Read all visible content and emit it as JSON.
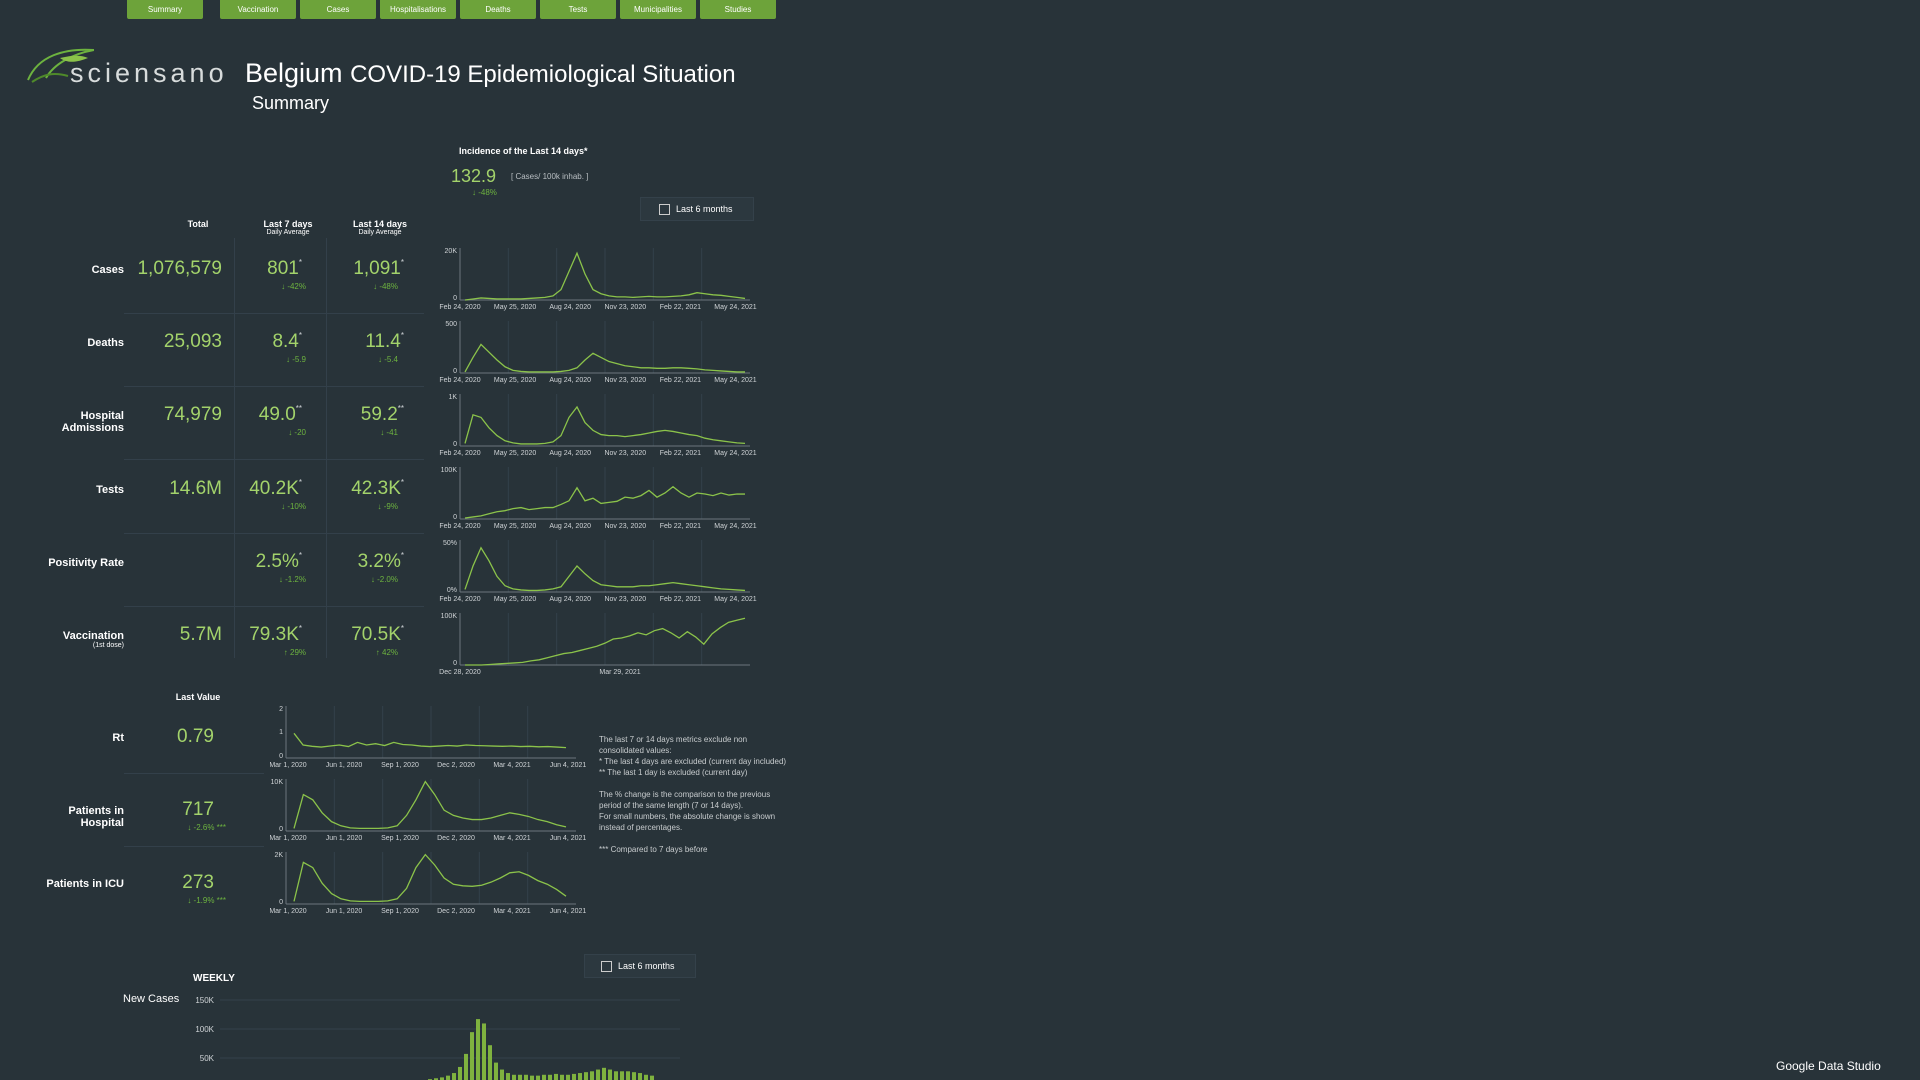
{
  "nav": [
    "Summary",
    "Vaccination",
    "Cases",
    "Hospitalisations",
    "Deaths",
    "Tests",
    "Municipalities",
    "Studies"
  ],
  "logo": {
    "text": "sciensano"
  },
  "header": {
    "title_main": "Belgium",
    "title_rest": "COVID-19 Epidemiological Situation",
    "subtitle": "Summary"
  },
  "incidence": {
    "label": "Incidence of the Last 14 days*",
    "value": "132.9",
    "unit": "[ Cases/ 100k inhab. ]",
    "change": "↓ -48%"
  },
  "toggle_top": {
    "label": "Last 6 months"
  },
  "toggle_bottom": {
    "label": "Last 6 months"
  },
  "columns": {
    "total": "Total",
    "last7": "Last 7 days",
    "last7_sub": "Daily Average",
    "last14": "Last 14 days",
    "last14_sub": "Daily Average"
  },
  "rows": [
    {
      "label": "Cases",
      "sub": "",
      "total": "1,076,579",
      "d7": "801",
      "d7_mark": "*",
      "d7_chg": "↓ -42%",
      "d14": "1,091",
      "d14_mark": "*",
      "d14_chg": "↓ -48%"
    },
    {
      "label": "Deaths",
      "sub": "",
      "total": "25,093",
      "d7": "8.4",
      "d7_mark": "*",
      "d7_chg": "↓ -5.9",
      "d14": "11.4",
      "d14_mark": "*",
      "d14_chg": "↓ -5.4"
    },
    {
      "label": "Hospital Admissions",
      "sub": "",
      "total": "74,979",
      "d7": "49.0",
      "d7_mark": "**",
      "d7_chg": "↓ -20",
      "d14": "59.2",
      "d14_mark": "**",
      "d14_chg": "↓ -41"
    },
    {
      "label": "Tests",
      "sub": "",
      "total": "14.6M",
      "d7": "40.2K",
      "d7_mark": "*",
      "d7_chg": "↓ -10%",
      "d14": "42.3K",
      "d14_mark": "*",
      "d14_chg": "↓ -9%"
    },
    {
      "label": "Positivity Rate",
      "sub": "",
      "total": "",
      "d7": "2.5%",
      "d7_mark": "*",
      "d7_chg": "↓ -1.2%",
      "d14": "3.2%",
      "d14_mark": "*",
      "d14_chg": "↓ -2.0%"
    },
    {
      "label": "Vaccination",
      "sub": "(1st dose)",
      "total": "5.7M",
      "d7": "79.3K",
      "d7_mark": "*",
      "d7_chg": "↑ 29%",
      "d14": "70.5K",
      "d14_mark": "*",
      "d14_chg": "↑ 42%"
    }
  ],
  "sparks": [
    {
      "ymax": "20K",
      "ymin": "0",
      "xlabels": [
        "Feb 24, 2020",
        "May 25, 2020",
        "Aug 24, 2020",
        "Nov 23, 2020",
        "Feb 22, 2021",
        "May 24, 2021"
      ]
    },
    {
      "ymax": "500",
      "ymin": "0",
      "xlabels": [
        "Feb 24, 2020",
        "May 25, 2020",
        "Aug 24, 2020",
        "Nov 23, 2020",
        "Feb 22, 2021",
        "May 24, 2021"
      ]
    },
    {
      "ymax": "1K",
      "ymin": "0",
      "xlabels": [
        "Feb 24, 2020",
        "May 25, 2020",
        "Aug 24, 2020",
        "Nov 23, 2020",
        "Feb 22, 2021",
        "May 24, 2021"
      ]
    },
    {
      "ymax": "100K",
      "ymin": "0",
      "xlabels": [
        "Feb 24, 2020",
        "May 25, 2020",
        "Aug 24, 2020",
        "Nov 23, 2020",
        "Feb 22, 2021",
        "May 24, 2021"
      ]
    },
    {
      "ymax": "50%",
      "ymin": "0%",
      "xlabels": [
        "Feb 24, 2020",
        "May 25, 2020",
        "Aug 24, 2020",
        "Nov 23, 2020",
        "Feb 22, 2021",
        "May 24, 2021"
      ]
    },
    {
      "ymax": "100K",
      "ymin": "0",
      "xlabels": [
        "Dec 28, 2020",
        "Mar 29, 2021"
      ]
    }
  ],
  "lastvalue": {
    "header": "Last Value",
    "rows": [
      {
        "label": "Rt",
        "value": "0.79",
        "chg": ""
      },
      {
        "label": "Patients in Hospital",
        "value": "717",
        "chg": "↓ -2.6% ***"
      },
      {
        "label": "Patients in ICU",
        "value": "273",
        "chg": "↓ -1.9% ***"
      }
    ]
  },
  "sparks2": [
    {
      "ymax": "2",
      "ymid": "1",
      "ymin": "0",
      "xlabels": [
        "Mar 1, 2020",
        "Jun 1, 2020",
        "Sep 1, 2020",
        "Dec 2, 2020",
        "Mar 4, 2021",
        "Jun 4, 2021"
      ]
    },
    {
      "ymax": "10K",
      "ymid": "",
      "ymin": "0",
      "xlabels": [
        "Mar 1, 2020",
        "Jun 1, 2020",
        "Sep 1, 2020",
        "Dec 2, 2020",
        "Mar 4, 2021",
        "Jun 4, 2021"
      ]
    },
    {
      "ymax": "2K",
      "ymid": "",
      "ymin": "0",
      "xlabels": [
        "Mar 1, 2020",
        "Jun 1, 2020",
        "Sep 1, 2020",
        "Dec 2, 2020",
        "Mar 4, 2021",
        "Jun 4, 2021"
      ]
    }
  ],
  "notes": [
    "The last 7 or 14 days metrics exclude non",
    "consolidated values:",
    "*   The last 4 days are excluded (current day included)",
    "**  The last 1 day is excluded (current day)",
    "",
    "The % change is the comparison to the previous",
    "period of the same length (7 or 14 days).",
    "For small numbers, the absolute change is shown",
    "instead of percentages.",
    "",
    "*** Compared to 7 days before"
  ],
  "weekly": {
    "title": "WEEKLY",
    "label": "New Cases",
    "yticks": [
      "150K",
      "100K",
      "50K"
    ]
  },
  "footer": {
    "brand": "Google Data Studio"
  },
  "colors": {
    "background": "#283339",
    "accent": "#8bc34a",
    "nav": "#6da33a",
    "value": "#a3d36b"
  }
}
